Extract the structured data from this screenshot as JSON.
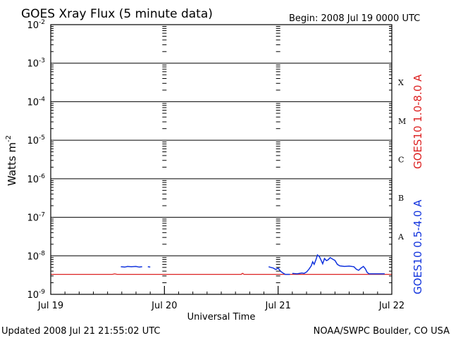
{
  "chart_data": {
    "type": "line",
    "title": "GOES Xray Flux (5 minute data)",
    "begin_label": "Begin:  2008 Jul 19 0000 UTC",
    "ylabel": "Watts m",
    "ylabel_sup": "-2",
    "xlabel": "Universal Time",
    "yscale": "log",
    "ylim": [
      1e-09,
      0.01
    ],
    "xlim": [
      0,
      72
    ],
    "grid": true,
    "y_ticks": [
      {
        "value": 1e-09,
        "base": "10",
        "exp": "-9"
      },
      {
        "value": 1e-08,
        "base": "10",
        "exp": "-8"
      },
      {
        "value": 1e-07,
        "base": "10",
        "exp": "-7"
      },
      {
        "value": 1e-06,
        "base": "10",
        "exp": "-6"
      },
      {
        "value": 1e-05,
        "base": "10",
        "exp": "-5"
      },
      {
        "value": 0.0001,
        "base": "10",
        "exp": "-4"
      },
      {
        "value": 0.001,
        "base": "10",
        "exp": "-3"
      },
      {
        "value": 0.01,
        "base": "10",
        "exp": "-2"
      }
    ],
    "x_ticks": [
      {
        "label": "Jul 19",
        "value": 0
      },
      {
        "label": "Jul 20",
        "value": 24
      },
      {
        "label": "Jul 21",
        "value": 48
      },
      {
        "label": "Jul 22",
        "value": 72
      }
    ],
    "flare_classes": [
      {
        "label": "X",
        "value": 0.000316
      },
      {
        "label": "M",
        "value": 3.16e-05
      },
      {
        "label": "C",
        "value": 3.16e-06
      },
      {
        "label": "B",
        "value": 3.16e-07
      },
      {
        "label": "A",
        "value": 3.16e-08
      }
    ],
    "series": [
      {
        "name": "GOES10 1.0-8.0 A",
        "color": "#dd2222",
        "points": [
          [
            0,
            3.3e-09
          ],
          [
            13,
            3.3e-09
          ],
          [
            13.5,
            3.4e-09
          ],
          [
            14,
            3.3e-09
          ],
          [
            40.2,
            3.3e-09
          ],
          [
            40.5,
            3.5e-09
          ],
          [
            40.8,
            3.3e-09
          ],
          [
            72,
            3.3e-09
          ]
        ]
      },
      {
        "name": "GOES10 0.5-4.0 A",
        "color": "#1133dd",
        "segments": [
          [
            [
              14.8,
              5.2e-09
            ],
            [
              15.6,
              5.1e-09
            ],
            [
              16.2,
              5.3e-09
            ],
            [
              17,
              5.2e-09
            ],
            [
              18,
              5.3e-09
            ],
            [
              18.7,
              5.1e-09
            ],
            [
              19.3,
              5.2e-09
            ]
          ],
          [
            [
              20.5,
              5.2e-09
            ],
            [
              21.0,
              5.1e-09
            ]
          ],
          [
            [
              46.0,
              5.2e-09
            ],
            [
              46.5,
              5e-09
            ],
            [
              47.0,
              4.8e-09
            ],
            [
              47.5,
              4.4e-09
            ],
            [
              48.0,
              4.8e-09
            ],
            [
              48.5,
              4e-09
            ],
            [
              49.0,
              3.6e-09
            ],
            [
              49.5,
              3.3e-09
            ],
            [
              50.5,
              3.3e-09
            ]
          ],
          [
            [
              51.0,
              3.5e-09
            ],
            [
              52.0,
              3.4e-09
            ],
            [
              53.0,
              3.6e-09
            ],
            [
              53.5,
              3.5e-09
            ],
            [
              54.0,
              3.8e-09
            ],
            [
              54.5,
              4.5e-09
            ],
            [
              55.0,
              5.5e-09
            ],
            [
              55.3,
              7e-09
            ],
            [
              55.6,
              6e-09
            ],
            [
              56.0,
              8e-09
            ],
            [
              56.3,
              1.05e-08
            ],
            [
              56.7,
              9.5e-09
            ],
            [
              57.0,
              8e-09
            ],
            [
              57.4,
              6.2e-09
            ],
            [
              57.8,
              8.5e-09
            ],
            [
              58.2,
              7.5e-09
            ],
            [
              58.5,
              7.8e-09
            ],
            [
              59.0,
              9e-09
            ],
            [
              59.5,
              8.2e-09
            ],
            [
              60.0,
              7.6e-09
            ],
            [
              60.5,
              6e-09
            ],
            [
              61.0,
              5.5e-09
            ],
            [
              62.0,
              5.3e-09
            ],
            [
              63.0,
              5.4e-09
            ],
            [
              64.0,
              5.2e-09
            ],
            [
              64.5,
              4.5e-09
            ],
            [
              65.0,
              4.2e-09
            ],
            [
              65.5,
              4.8e-09
            ],
            [
              66.0,
              5.3e-09
            ],
            [
              66.4,
              4.6e-09
            ],
            [
              66.8,
              3.7e-09
            ],
            [
              67.2,
              3.4e-09
            ],
            [
              70.5,
              3.4e-09
            ]
          ]
        ]
      }
    ]
  },
  "footer": {
    "updated": "Updated 2008 Jul 21 21:55:02 UTC",
    "source": "NOAA/SWPC Boulder, CO USA"
  }
}
